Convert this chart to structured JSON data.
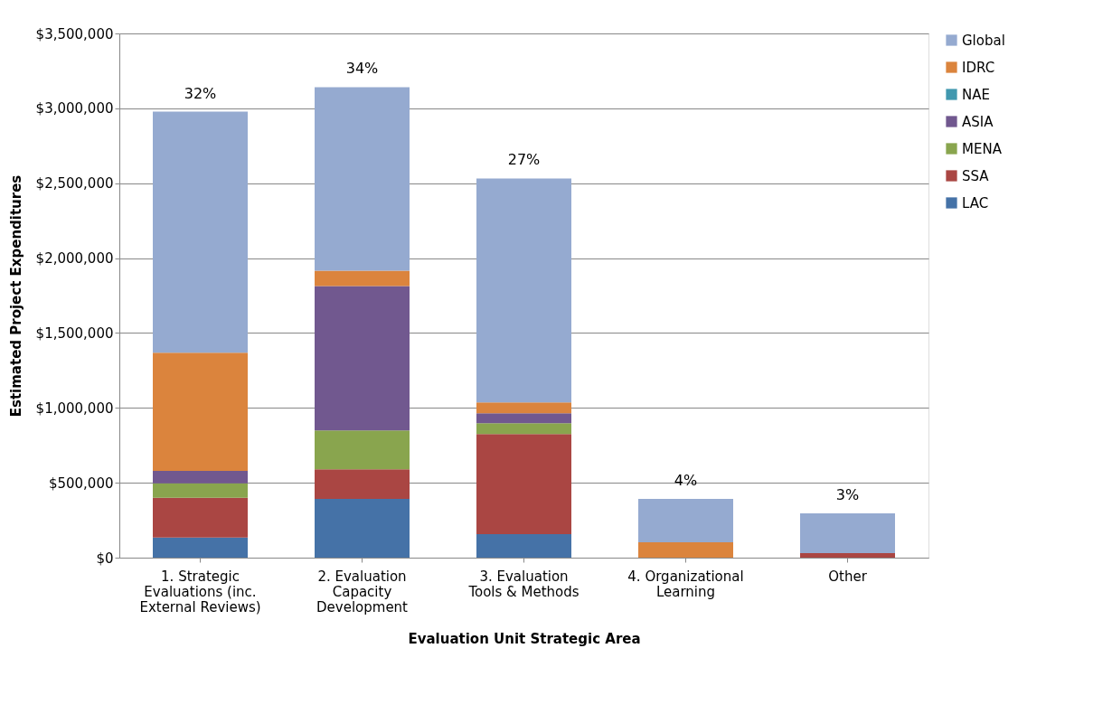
{
  "chart_data": {
    "type": "bar",
    "stacked": true,
    "xlabel": "Evaluation Unit Strategic Area",
    "ylabel": "Estimated Project Expenditures",
    "categories": [
      "1. Strategic Evaluations (inc. External Reviews)",
      "2. Evaluation Capacity Development",
      "3. Evaluation Tools & Methods",
      "4. Organizational Learning",
      "Other"
    ],
    "series": [
      {
        "name": "LAC",
        "color": "#4572a7",
        "values": [
          135000,
          392000,
          157000,
          0,
          0
        ]
      },
      {
        "name": "SSA",
        "color": "#aa4643",
        "values": [
          265000,
          198000,
          668000,
          0,
          30000
        ]
      },
      {
        "name": "MENA",
        "color": "#89a54e",
        "values": [
          96000,
          259000,
          73000,
          0,
          0
        ]
      },
      {
        "name": "ASIA",
        "color": "#71588f",
        "values": [
          84000,
          964000,
          66000,
          null,
          0
        ]
      },
      {
        "name": "NAE",
        "color": "#4198af",
        "values": [
          0,
          0,
          0,
          0,
          0
        ]
      },
      {
        "name": "IDRC",
        "color": "#db843d",
        "values": [
          789000,
          103000,
          72000,
          102000,
          0
        ]
      },
      {
        "name": "Global",
        "color": "#95aad0",
        "values": [
          1609000,
          1225000,
          1496000,
          290000,
          265000
        ]
      }
    ],
    "ylim": [
      0,
      3500000
    ],
    "yticks": [
      {
        "value": 0,
        "label": "$0"
      },
      {
        "value": 500000,
        "label": "$500,000"
      },
      {
        "value": 1000000,
        "label": "$1,000,000"
      },
      {
        "value": 1500000,
        "label": "$1,500,000"
      },
      {
        "value": 2000000,
        "label": "$2,000,000"
      },
      {
        "value": 2500000,
        "label": "$2,500,000"
      },
      {
        "value": 3000000,
        "label": "$3,000,000"
      },
      {
        "value": 3500000,
        "label": "$3,500,000"
      }
    ],
    "grid": "y",
    "legend": "right",
    "annotations": [
      {
        "text": "32%",
        "x": "1. Strategic Evaluations (inc. External Reviews)",
        "y": 2978000
      },
      {
        "text": "34%",
        "x": "2. Evaluation Capacity Development",
        "y": 3141000
      },
      {
        "text": "27%",
        "x": "3. Evaluation Tools & Methods",
        "y": 2532000
      },
      {
        "text": "4%",
        "x": "4. Organizational Learning",
        "y": 392000
      },
      {
        "text": "3%",
        "x": "Other",
        "y": 295000
      }
    ]
  }
}
